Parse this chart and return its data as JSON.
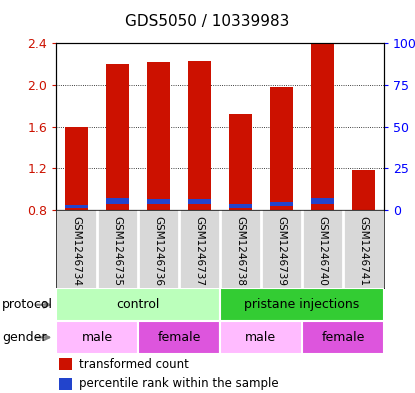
{
  "title": "GDS5050 / 10339983",
  "samples": [
    "GSM1246734",
    "GSM1246735",
    "GSM1246736",
    "GSM1246737",
    "GSM1246738",
    "GSM1246739",
    "GSM1246740",
    "GSM1246741"
  ],
  "red_values": [
    1.6,
    2.2,
    2.22,
    2.23,
    1.72,
    1.98,
    2.4,
    1.18
  ],
  "blue_values": [
    0.82,
    0.86,
    0.86,
    0.86,
    0.82,
    0.84,
    0.86,
    0.8
  ],
  "blue_heights": [
    0.03,
    0.055,
    0.04,
    0.045,
    0.035,
    0.035,
    0.05,
    0.0
  ],
  "ylim": [
    0.8,
    2.4
  ],
  "yticks_left": [
    0.8,
    1.2,
    1.6,
    2.0,
    2.4
  ],
  "yticks_right_labels": [
    "0",
    "25",
    "50",
    "75",
    "100%"
  ],
  "protocol_groups": [
    {
      "label": "control",
      "start": 0,
      "end": 4,
      "color": "#bbffbb"
    },
    {
      "label": "pristane injections",
      "start": 4,
      "end": 8,
      "color": "#33cc33"
    }
  ],
  "gender_groups": [
    {
      "label": "male",
      "start": 0,
      "end": 2,
      "color": "#ffbbff"
    },
    {
      "label": "female",
      "start": 2,
      "end": 4,
      "color": "#dd55dd"
    },
    {
      "label": "male",
      "start": 4,
      "end": 6,
      "color": "#ffbbff"
    },
    {
      "label": "female",
      "start": 6,
      "end": 8,
      "color": "#dd55dd"
    }
  ],
  "red_color": "#cc1100",
  "blue_color": "#2244cc",
  "bar_width": 0.55,
  "legend_red_label": "transformed count",
  "legend_blue_label": "percentile rank within the sample",
  "label_protocol": "protocol",
  "label_gender": "gender",
  "sample_bg_color": "#d8d8d8",
  "title_fontsize": 11
}
